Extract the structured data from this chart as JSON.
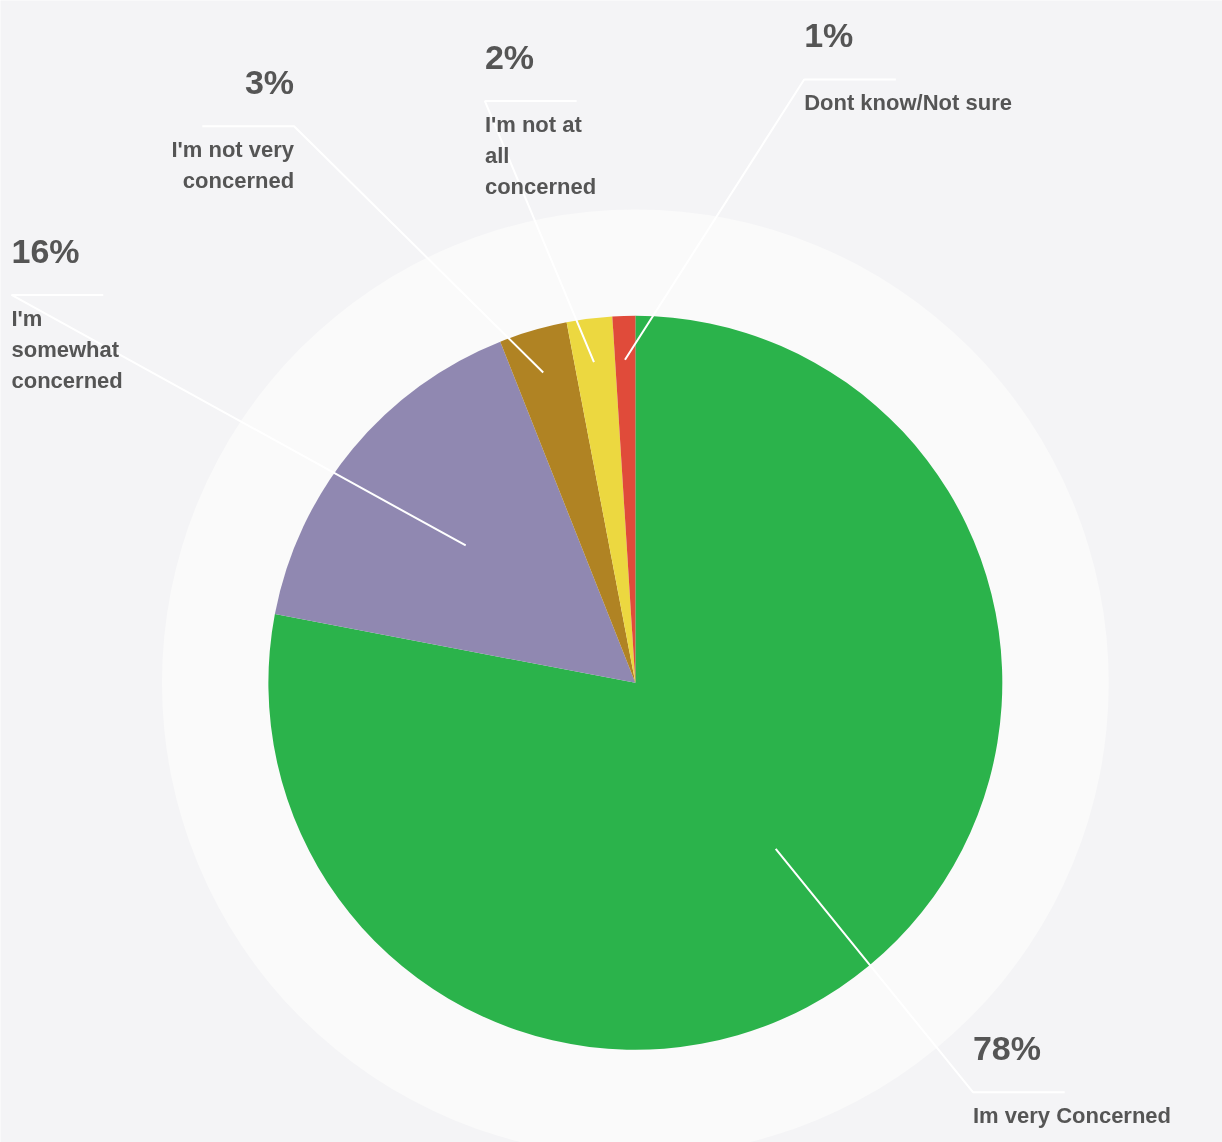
{
  "chart_data": {
    "type": "pie",
    "categories": [
      "Im very Concerned",
      "I'm somewhat concerned",
      "I'm not very concerned",
      "I'm not at all concerned",
      "Dont know/Not sure"
    ],
    "values": [
      78,
      16,
      3,
      2,
      1
    ],
    "colors": [
      "#2bb34b",
      "#9088b1",
      "#b08323",
      "#ecd840",
      "#e04b3a"
    ],
    "value_labels": [
      "78%",
      "16%",
      "3%",
      "2%",
      "1%"
    ]
  }
}
